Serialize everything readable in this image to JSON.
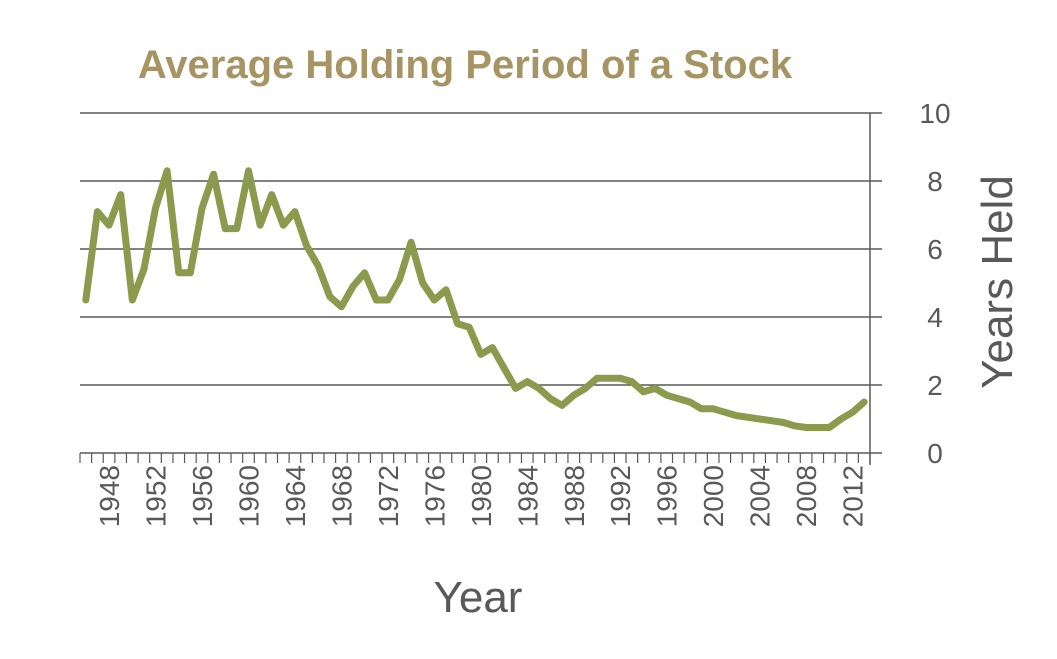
{
  "colors": {
    "title": "#A69462",
    "line": "#8B9A4D",
    "grid": "#595959",
    "text": "#595959",
    "background": "#FFFFFF"
  },
  "chart_data": {
    "type": "line",
    "title": "Average Holding Period of a Stock",
    "xlabel": "Year",
    "ylabel": "Years Held",
    "xlim": [
      1946,
      2013
    ],
    "ylim": [
      0,
      10
    ],
    "y_axis_side": "right",
    "grid": "horizontal",
    "y_ticks": [
      0,
      2,
      4,
      6,
      8,
      10
    ],
    "x_tick_labels": [
      "1948",
      "1952",
      "1956",
      "1960",
      "1964",
      "1968",
      "1972",
      "1976",
      "1980",
      "1984",
      "1988",
      "1992",
      "1996",
      "2000",
      "2004",
      "2008",
      "2012"
    ],
    "series": [
      {
        "x": [
          1946,
          1947,
          1948,
          1949,
          1950,
          1951,
          1952,
          1953,
          1954,
          1955,
          1956,
          1957,
          1958,
          1959,
          1960,
          1961,
          1962,
          1963,
          1964,
          1965,
          1966,
          1967,
          1968,
          1969,
          1970,
          1971,
          1972,
          1973,
          1974,
          1975,
          1976,
          1977,
          1978,
          1979,
          1980,
          1981,
          1982,
          1983,
          1984,
          1985,
          1986,
          1987,
          1988,
          1989,
          1990,
          1991,
          1992,
          1993,
          1994,
          1995,
          1996,
          1997,
          1998,
          1999,
          2000,
          2001,
          2002,
          2003,
          2004,
          2005,
          2006,
          2007,
          2008,
          2009,
          2010,
          2011,
          2012,
          2013
        ],
        "values": [
          4.5,
          7.1,
          6.7,
          7.6,
          4.5,
          5.4,
          7.2,
          8.3,
          5.3,
          5.3,
          7.2,
          8.2,
          6.6,
          6.6,
          8.3,
          6.7,
          7.6,
          6.7,
          7.1,
          6.1,
          5.5,
          4.6,
          4.3,
          4.9,
          5.3,
          4.5,
          4.5,
          5.1,
          6.2,
          5.0,
          4.5,
          4.8,
          3.8,
          3.7,
          2.9,
          3.1,
          2.5,
          1.9,
          2.1,
          1.9,
          1.6,
          1.4,
          1.7,
          1.9,
          2.2,
          2.2,
          2.2,
          2.1,
          1.8,
          1.9,
          1.7,
          1.6,
          1.5,
          1.3,
          1.3,
          1.2,
          1.1,
          1.05,
          1.0,
          0.95,
          0.9,
          0.8,
          0.75,
          0.75,
          0.75,
          1.0,
          1.2,
          1.5
        ]
      }
    ]
  }
}
